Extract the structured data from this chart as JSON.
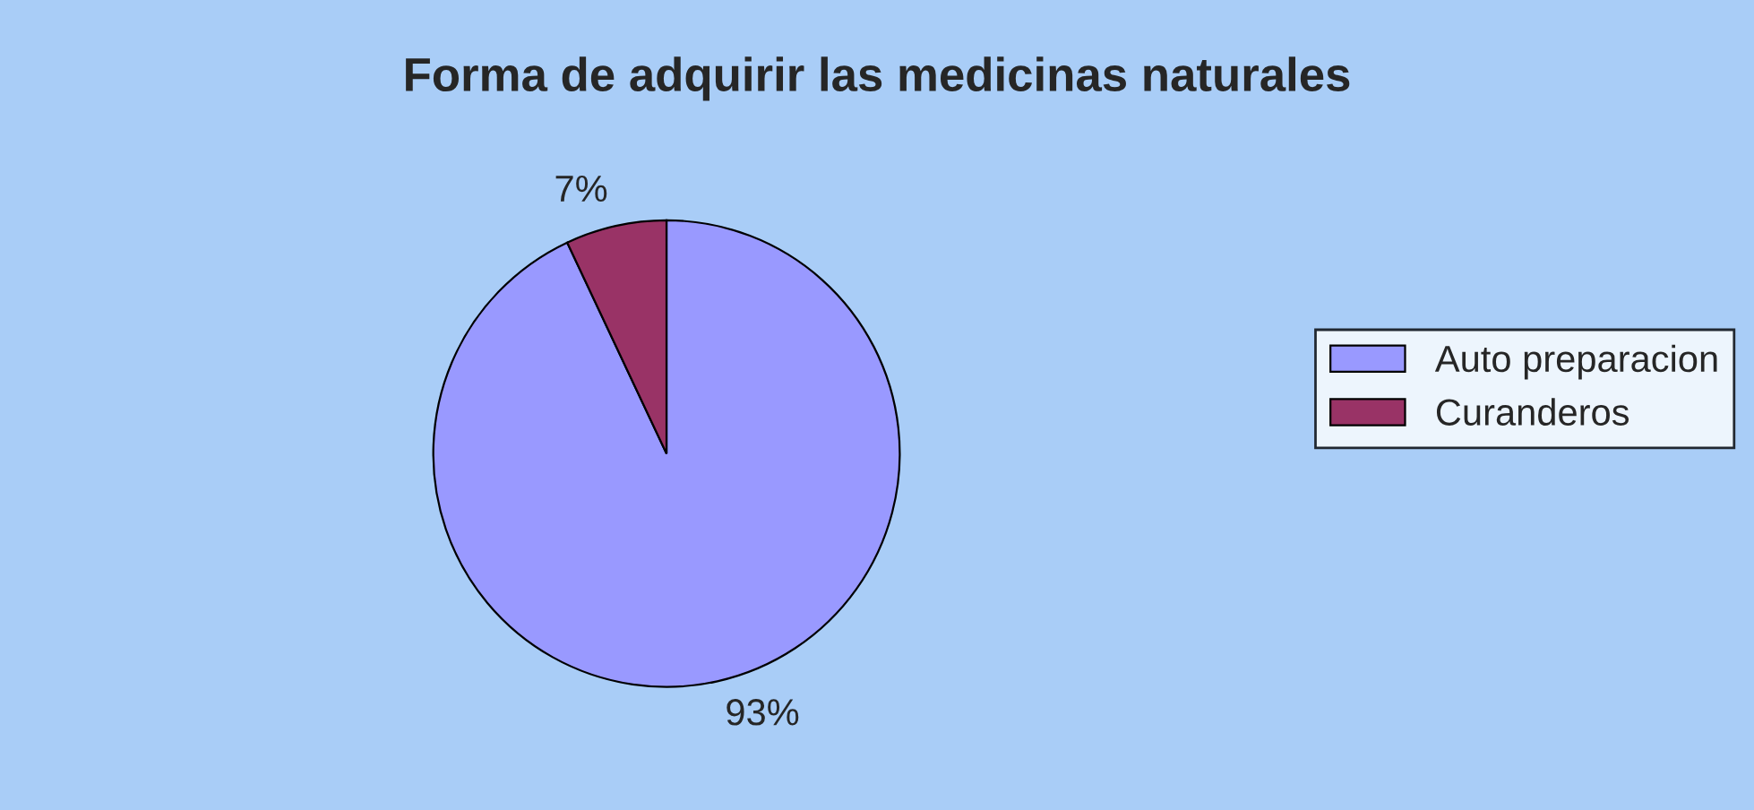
{
  "chart_data": {
    "type": "pie",
    "title": "Forma de adquirir las medicinas naturales",
    "categories": [
      "Auto preparacion",
      "Curanderos"
    ],
    "values": [
      93,
      7
    ],
    "colors": [
      "#9999ff",
      "#993366"
    ],
    "value_labels": [
      "93%",
      "7%"
    ],
    "legend": "right"
  }
}
